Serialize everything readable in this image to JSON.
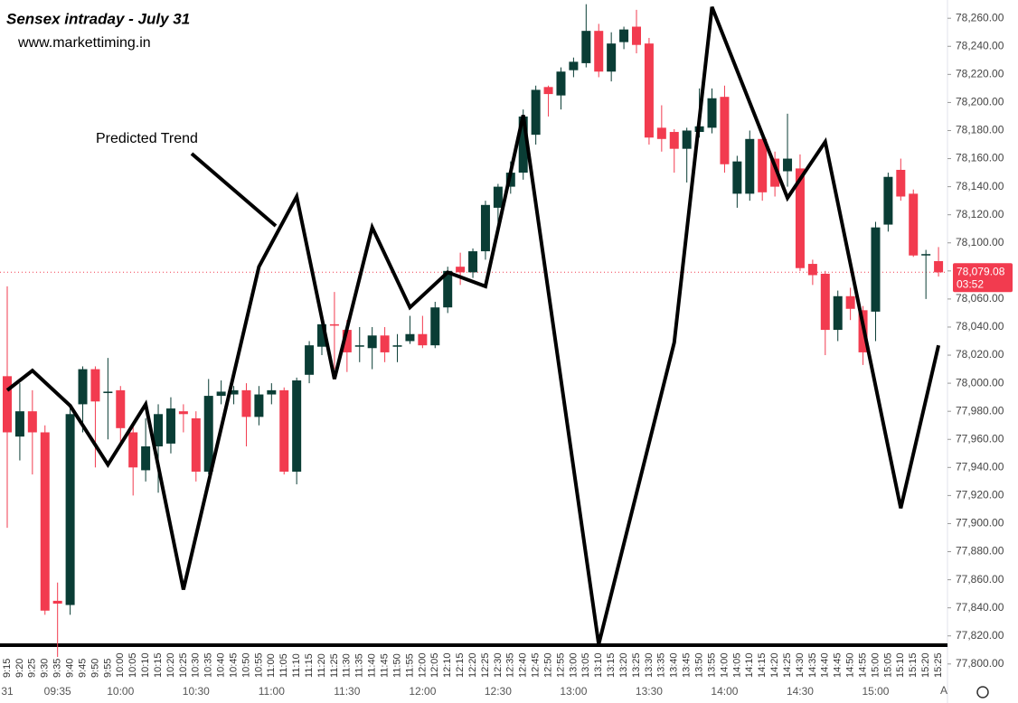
{
  "chart_data": {
    "type": "candlestick",
    "title": "Sensex intraday - July 31",
    "subtitle": "www.markettiming.in",
    "categories": [
      "9:15",
      "9:20",
      "9:25",
      "9:30",
      "9:35",
      "9:40",
      "9:45",
      "9:50",
      "9:55",
      "10:00",
      "10:05",
      "10:10",
      "10:15",
      "10:20",
      "10:25",
      "10:30",
      "10:35",
      "10:40",
      "10:45",
      "10:50",
      "10:55",
      "11:00",
      "11:05",
      "11:10",
      "11:15",
      "11:20",
      "11:25",
      "11:30",
      "11:35",
      "11:40",
      "11:45",
      "11:50",
      "11:55",
      "12:00",
      "12:05",
      "12:10",
      "12:15",
      "12:20",
      "12:25",
      "12:30",
      "12:35",
      "12:40",
      "12:45",
      "12:50",
      "12:55",
      "13:00",
      "13:05",
      "13:10",
      "13:15",
      "13:20",
      "13:25",
      "13:30",
      "13:35",
      "13:40",
      "13:45",
      "13:50",
      "13:55",
      "14:00",
      "14:05",
      "14:10",
      "14:15",
      "14:20",
      "14:25",
      "14:30",
      "14:35",
      "14:40",
      "14:45",
      "14:50",
      "14:55",
      "15:00",
      "15:05",
      "15:10",
      "15:15",
      "15:20",
      "15:25"
    ],
    "open": [
      78005,
      77962,
      77980,
      77965,
      77845,
      77842,
      77985,
      78010,
      77993,
      77995,
      77965,
      77938,
      77955,
      77957,
      77980,
      77975,
      77937,
      77991,
      77992,
      77995,
      77976,
      77992,
      77995,
      77937,
      78006,
      78026,
      78042,
      78038,
      78026,
      78025,
      78034,
      78026,
      78030,
      78035,
      78027,
      78054,
      78083,
      78079,
      78094,
      78125,
      78140,
      78150,
      78177,
      78211,
      78205,
      78223,
      78228,
      78251,
      78222,
      78243,
      78254,
      78242,
      78182,
      78179,
      78167,
      78179,
      78182,
      78204,
      78135,
      78135,
      78174,
      78160,
      78151,
      78153,
      78085,
      78078,
      78038,
      78062,
      78052,
      78051,
      78113,
      78152,
      78135,
      78091,
      78087
    ],
    "high": [
      78069,
      78000,
      77995,
      77970,
      77858,
      77985,
      78012,
      78012,
      78018,
      77998,
      77970,
      77975,
      77985,
      77990,
      77985,
      77980,
      78003,
      78002,
      77998,
      78000,
      77998,
      78000,
      77997,
      78004,
      78030,
      78045,
      78065,
      78045,
      78040,
      78040,
      78040,
      78035,
      78048,
      78048,
      78058,
      78083,
      78093,
      78096,
      78130,
      78142,
      78158,
      78195,
      78212,
      78212,
      78225,
      78232,
      78270,
      78256,
      78250,
      78254,
      78266,
      78246,
      78198,
      78181,
      78182,
      78210,
      78210,
      78212,
      78162,
      78180,
      78180,
      78165,
      78192,
      78163,
      78088,
      78080,
      78066,
      78068,
      78055,
      78115,
      78150,
      78160,
      78138,
      78095,
      78097
    ],
    "low": [
      77897,
      77945,
      77935,
      77835,
      77805,
      77835,
      77965,
      77940,
      77960,
      77955,
      77920,
      77930,
      77922,
      77950,
      77965,
      77930,
      77935,
      77985,
      77985,
      77955,
      77970,
      77985,
      77935,
      77928,
      78000,
      78020,
      78010,
      78008,
      78015,
      78010,
      78015,
      78015,
      78028,
      78025,
      78025,
      78050,
      78070,
      78075,
      78088,
      78110,
      78135,
      78145,
      78170,
      78190,
      78195,
      78218,
      78225,
      78218,
      78215,
      78238,
      78235,
      78170,
      78165,
      78150,
      78143,
      78175,
      78178,
      78150,
      78125,
      78130,
      78130,
      78133,
      78140,
      78080,
      78070,
      78020,
      78030,
      78045,
      78013,
      78030,
      78108,
      78130,
      78090,
      78060,
      78076
    ],
    "close": [
      77965,
      77980,
      77965,
      77838,
      77843,
      77978,
      78010,
      77987,
      77994,
      77968,
      77940,
      77955,
      77978,
      77982,
      77978,
      77937,
      77991,
      77994,
      77995,
      77976,
      77992,
      77995,
      77937,
      78002,
      78027,
      78042,
      78041,
      78022,
      78027,
      78034,
      78022,
      78027,
      78035,
      78027,
      78054,
      78080,
      78079,
      78094,
      78127,
      78140,
      78150,
      78190,
      78209,
      78206,
      78222,
      78229,
      78251,
      78222,
      78242,
      78252,
      78241,
      78175,
      78174,
      78167,
      78180,
      78183,
      78203,
      78156,
      78158,
      78174,
      78136,
      78140,
      78160,
      78082,
      78077,
      78038,
      78062,
      78053,
      78022,
      78111,
      78147,
      78133,
      78091,
      78092,
      78079
    ],
    "up_color": "#0a3d35",
    "down_color": "#f23b4f",
    "trend": {
      "name": "Predicted Trend",
      "color": "#000000",
      "x": [
        "9:15",
        "9:25",
        "9:40",
        "9:55",
        "10:10",
        "10:25",
        "10:55",
        "11:10",
        "11:25",
        "11:40",
        "11:55",
        "12:10",
        "12:25",
        "12:40",
        "13:10",
        "13:40",
        "13:55",
        "14:25",
        "14:40",
        "15:10",
        "15:25"
      ],
      "values": [
        77995,
        78009,
        77984,
        77942,
        77985,
        77853,
        78083,
        78133,
        78003,
        78111,
        78054,
        78079,
        78069,
        78191,
        77814,
        78029,
        78268,
        78132,
        78172,
        77911,
        78027
      ]
    },
    "last_price": 78079.08,
    "last_price_label": "78,079.08",
    "countdown": "03:52",
    "time_labels": [
      {
        "label": "31",
        "at": "9:15"
      },
      {
        "label": "09:35",
        "at": "9:35"
      },
      {
        "label": "10:00",
        "at": "10:00"
      },
      {
        "label": "10:30",
        "at": "10:30"
      },
      {
        "label": "11:00",
        "at": "11:00"
      },
      {
        "label": "11:30",
        "at": "11:30"
      },
      {
        "label": "12:00",
        "at": "12:00"
      },
      {
        "label": "12:30",
        "at": "12:30"
      },
      {
        "label": "13:00",
        "at": "13:00"
      },
      {
        "label": "13:30",
        "at": "13:30"
      },
      {
        "label": "14:00",
        "at": "14:00"
      },
      {
        "label": "14:30",
        "at": "14:30"
      },
      {
        "label": "15:00",
        "at": "15:00"
      }
    ],
    "auto_scale_label": "A",
    "ylim": [
      77787,
      78273
    ],
    "yticks": [
      {
        "value": 77800,
        "label": "77,800.00"
      },
      {
        "value": 77820,
        "label": "77,820.00"
      },
      {
        "value": 77840,
        "label": "77,840.00"
      },
      {
        "value": 77860,
        "label": "77,860.00"
      },
      {
        "value": 77880,
        "label": "77,880.00"
      },
      {
        "value": 77900,
        "label": "77,900.00"
      },
      {
        "value": 77920,
        "label": "77,920.00"
      },
      {
        "value": 77940,
        "label": "77,940.00"
      },
      {
        "value": 77960,
        "label": "77,960.00"
      },
      {
        "value": 77980,
        "label": "77,980.00"
      },
      {
        "value": 78000,
        "label": "78,000.00"
      },
      {
        "value": 78020,
        "label": "78,020.00"
      },
      {
        "value": 78040,
        "label": "78,040.00"
      },
      {
        "value": 78060,
        "label": "78,060.00"
      },
      {
        "value": 78080,
        "label": "78,080.00"
      },
      {
        "value": 78100,
        "label": "78,100.00"
      },
      {
        "value": 78120,
        "label": "78,120.00"
      },
      {
        "value": 78140,
        "label": "78,140.00"
      },
      {
        "value": 78160,
        "label": "78,160.00"
      },
      {
        "value": 78180,
        "label": "78,180.00"
      },
      {
        "value": 78200,
        "label": "78,200.00"
      },
      {
        "value": 78220,
        "label": "78,220.00"
      },
      {
        "value": 78240,
        "label": "78,240.00"
      },
      {
        "value": 78260,
        "label": "78,260.00"
      }
    ],
    "grid": false
  }
}
